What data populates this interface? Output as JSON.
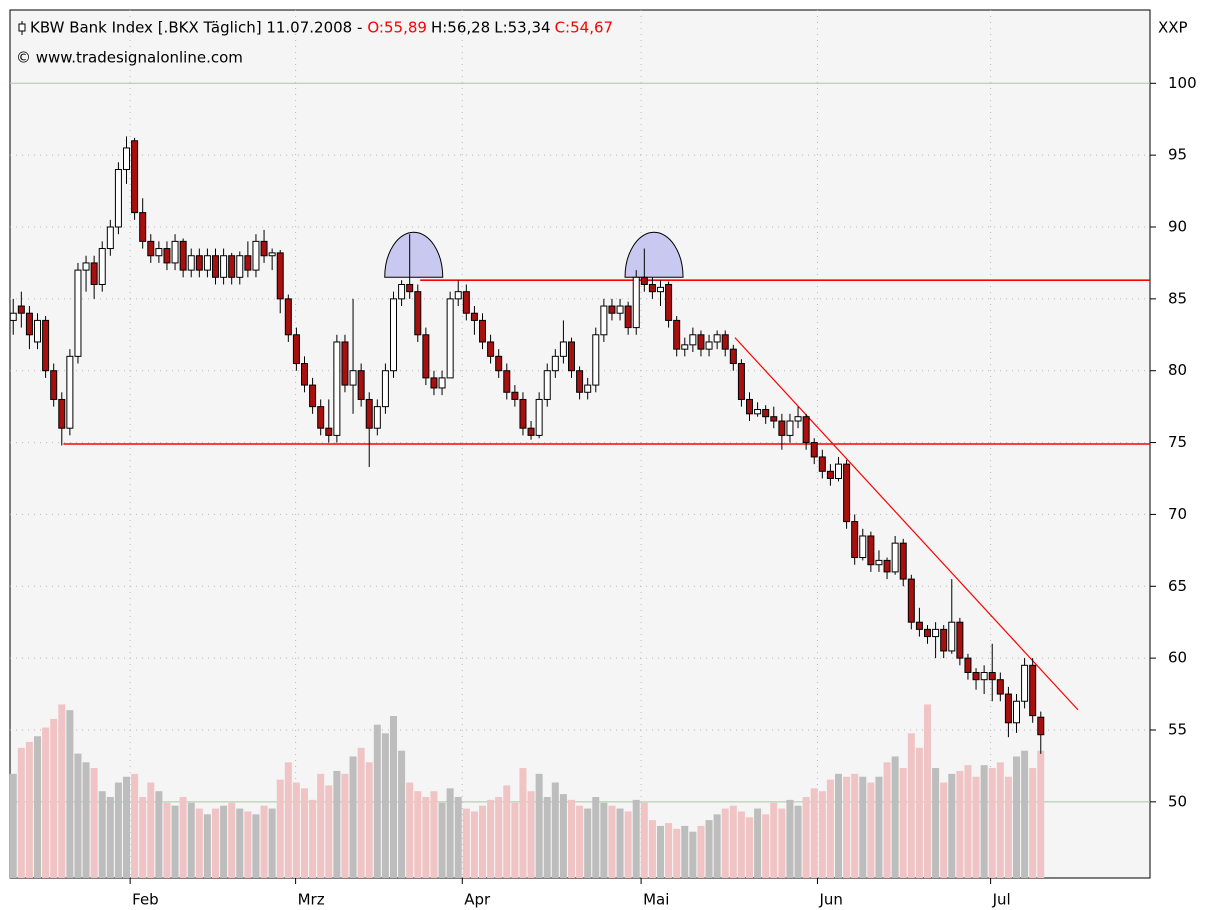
{
  "chart_data": {
    "type": "candlestick",
    "title": "KBW Bank Index [.BKX  Täglich] 11.07.2008 -",
    "ohlc_labels": [
      {
        "label": "O:55,89",
        "color": "#ff0000"
      },
      {
        "label": "H:56,28",
        "color": "#000000"
      },
      {
        "label": "L:53,34",
        "color": "#000000"
      },
      {
        "label": "C:54,67",
        "color": "#ff0000"
      }
    ],
    "subtitle": "© www.tradesignalonline.com",
    "y_axis_label": "XXP",
    "up_color": "#ffffff",
    "down_color": "#a81010",
    "volume_up_color": "#bdbdbd",
    "volume_down_color": "#f0c4c4",
    "grid": true,
    "xlim": [
      -0.4,
      140.5
    ],
    "xticks": [
      {
        "value": 14.45,
        "label": "Feb"
      },
      {
        "value": 34.9,
        "label": "Mrz"
      },
      {
        "value": 55.5,
        "label": "Apr"
      },
      {
        "value": 77.6,
        "label": "Mai"
      },
      {
        "value": 99.4,
        "label": "Jun"
      },
      {
        "value": 120.8,
        "label": "Jul"
      }
    ],
    "ylim": [
      44.7,
      105.1
    ],
    "yticks": [
      50,
      55,
      60,
      65,
      70,
      75,
      80,
      85,
      90,
      95,
      100
    ],
    "y2lim": [
      0,
      300
    ],
    "candles": [
      [
        83.5,
        85,
        82.5,
        84
      ],
      [
        84.5,
        85.5,
        83,
        84
      ],
      [
        84,
        84.5,
        81.5,
        82.5
      ],
      [
        82,
        84,
        81.5,
        83.5
      ],
      [
        83.5,
        83.8,
        79.5,
        80
      ],
      [
        80,
        80.5,
        77.5,
        78
      ],
      [
        78,
        78.5,
        74.8,
        76
      ],
      [
        76,
        81.5,
        75.5,
        81
      ],
      [
        81,
        87.5,
        80.5,
        87
      ],
      [
        87,
        88,
        85.5,
        87.5
      ],
      [
        87.5,
        88,
        85,
        86
      ],
      [
        86,
        89,
        85.5,
        88.5
      ],
      [
        88.5,
        90.5,
        88,
        90
      ],
      [
        90,
        94.5,
        89.5,
        94
      ],
      [
        94,
        96.3,
        93,
        95.5
      ],
      [
        96,
        96.2,
        90.5,
        91
      ],
      [
        91,
        92,
        88.5,
        89
      ],
      [
        89,
        89.5,
        87.5,
        88
      ],
      [
        88,
        89,
        87.5,
        88.5
      ],
      [
        88.5,
        89,
        87,
        87.5
      ],
      [
        87.5,
        89.5,
        87,
        89
      ],
      [
        89,
        89.2,
        86.5,
        87
      ],
      [
        87,
        88.5,
        86.5,
        88
      ],
      [
        88,
        88.5,
        86.5,
        87
      ],
      [
        87,
        88.5,
        86.5,
        88
      ],
      [
        88,
        88.5,
        86,
        86.5
      ],
      [
        86.5,
        88.5,
        86,
        88
      ],
      [
        88,
        88.2,
        86,
        86.5
      ],
      [
        86.5,
        88.3,
        86,
        88
      ],
      [
        88,
        89,
        86.5,
        87
      ],
      [
        87,
        89.5,
        86.5,
        89
      ],
      [
        89,
        89.8,
        87.5,
        88
      ],
      [
        88,
        88.5,
        87,
        88.2
      ],
      [
        88.2,
        88.4,
        84,
        85
      ],
      [
        85,
        85.3,
        82,
        82.5
      ],
      [
        82.5,
        83,
        80,
        80.5
      ],
      [
        80.5,
        81,
        78.5,
        79
      ],
      [
        79,
        79.5,
        77,
        77.5
      ],
      [
        77.5,
        78,
        75.5,
        76
      ],
      [
        76,
        78,
        75,
        75.5
      ],
      [
        75.5,
        82.5,
        75,
        82
      ],
      [
        82,
        82.5,
        78.5,
        79
      ],
      [
        79,
        85,
        77,
        80
      ],
      [
        80,
        80.5,
        77.5,
        78
      ],
      [
        78,
        78.5,
        73.3,
        76
      ],
      [
        76,
        78,
        75.5,
        77.5
      ],
      [
        77.5,
        80.5,
        77,
        80
      ],
      [
        80,
        85.5,
        79.5,
        85
      ],
      [
        85,
        86.3,
        84.5,
        86
      ],
      [
        86,
        89.5,
        85,
        85.5
      ],
      [
        85.5,
        86,
        82,
        82.5
      ],
      [
        82.5,
        83,
        79,
        79.5
      ],
      [
        79.5,
        80,
        78.3,
        78.8
      ],
      [
        78.8,
        80,
        78.3,
        79.5
      ],
      [
        79.5,
        85.5,
        79.5,
        85
      ],
      [
        85,
        86.3,
        84.5,
        85.5
      ],
      [
        85.5,
        86,
        83.5,
        84
      ],
      [
        84,
        84.5,
        82.5,
        83.5
      ],
      [
        83.5,
        84,
        81.5,
        82
      ],
      [
        82,
        82.5,
        80.5,
        81
      ],
      [
        81,
        81.5,
        79.5,
        80
      ],
      [
        80,
        80.5,
        78,
        78.5
      ],
      [
        78.5,
        79,
        77.5,
        78
      ],
      [
        78,
        78.5,
        75.5,
        76
      ],
      [
        76,
        76.5,
        75.2,
        75.5
      ],
      [
        75.5,
        78.5,
        75.3,
        78
      ],
      [
        78,
        80.5,
        77.5,
        80
      ],
      [
        80,
        81.5,
        79.5,
        81
      ],
      [
        81,
        83.5,
        80.5,
        82
      ],
      [
        82,
        82.3,
        79.5,
        80
      ],
      [
        80,
        80.3,
        78,
        78.5
      ],
      [
        78.5,
        79.5,
        78,
        79
      ],
      [
        79,
        83,
        78.5,
        82.5
      ],
      [
        82.5,
        85,
        82,
        84.5
      ],
      [
        84.5,
        85,
        83.5,
        84
      ],
      [
        84,
        85,
        83.5,
        84.5
      ],
      [
        84.5,
        84.8,
        82.5,
        83
      ],
      [
        83,
        87,
        82.5,
        86.5
      ],
      [
        86.5,
        88.5,
        85.5,
        86
      ],
      [
        86,
        86.5,
        85,
        85.5
      ],
      [
        85.5,
        86.3,
        84.5,
        85.8
      ],
      [
        86,
        86.2,
        83,
        83.5
      ],
      [
        83.5,
        83.8,
        81,
        81.5
      ],
      [
        81.5,
        82.3,
        81,
        81.8
      ],
      [
        81.8,
        83,
        81.3,
        82.5
      ],
      [
        82.5,
        82.8,
        81,
        81.5
      ],
      [
        81.5,
        82.5,
        81,
        82
      ],
      [
        82,
        82.8,
        81.5,
        82.5
      ],
      [
        82.5,
        82.8,
        81,
        81.5
      ],
      [
        81.5,
        81.8,
        80,
        80.5
      ],
      [
        80.5,
        80.8,
        77.5,
        78
      ],
      [
        78,
        78.5,
        76.5,
        77
      ],
      [
        77,
        77.8,
        76.8,
        77.3
      ],
      [
        77.3,
        77.6,
        76.3,
        76.8
      ],
      [
        76.8,
        77.5,
        76,
        76.5
      ],
      [
        76.5,
        77,
        74.5,
        75.5
      ],
      [
        75.5,
        77,
        75,
        76.5
      ],
      [
        76.5,
        77.5,
        76,
        76.8
      ],
      [
        76.8,
        77,
        74.5,
        75
      ],
      [
        75,
        75.3,
        73.5,
        74
      ],
      [
        74,
        74.5,
        72.5,
        73
      ],
      [
        73,
        73.5,
        72,
        72.5
      ],
      [
        72.5,
        74,
        72.3,
        73.5
      ],
      [
        73.5,
        73.8,
        69,
        69.5
      ],
      [
        69.5,
        70,
        66.5,
        67
      ],
      [
        67,
        69,
        66.8,
        68.5
      ],
      [
        68.5,
        68.8,
        66,
        66.5
      ],
      [
        66.5,
        67.5,
        66,
        66.8
      ],
      [
        66.8,
        67,
        65.5,
        66
      ],
      [
        66,
        68.5,
        65.8,
        68
      ],
      [
        68,
        68.3,
        65,
        65.5
      ],
      [
        65.5,
        65.8,
        62,
        62.5
      ],
      [
        62.5,
        63.5,
        61.5,
        62
      ],
      [
        62,
        62.3,
        61,
        61.5
      ],
      [
        61.5,
        62.5,
        60,
        62
      ],
      [
        62,
        62.3,
        60,
        60.5
      ],
      [
        60.5,
        65.5,
        60.3,
        62.5
      ],
      [
        62.5,
        62.8,
        59.5,
        60
      ],
      [
        60,
        60.3,
        58.5,
        59
      ],
      [
        59,
        59.3,
        57.8,
        58.5
      ],
      [
        58.5,
        59.5,
        57.5,
        59
      ],
      [
        59,
        61,
        57,
        58.5
      ],
      [
        58.5,
        59,
        57,
        57.5
      ],
      [
        57.5,
        58,
        54.5,
        55.5
      ],
      [
        55.5,
        57.5,
        54.8,
        57
      ],
      [
        57,
        60,
        56.5,
        59.5
      ],
      [
        59.5,
        60,
        55.5,
        56
      ],
      [
        55.89,
        56.28,
        53.34,
        54.67
      ]
    ],
    "volume": [
      36,
      45,
      47,
      49,
      52,
      55,
      60,
      58,
      43,
      40,
      38,
      30,
      28,
      33,
      35,
      36,
      28,
      33,
      30,
      26,
      25,
      28,
      26,
      24,
      22,
      24,
      25,
      26,
      24,
      23,
      22,
      25,
      24,
      34,
      40,
      33,
      31,
      27,
      36,
      32,
      37,
      36,
      42,
      45,
      40,
      53,
      50,
      56,
      44,
      33,
      30,
      28,
      30,
      26,
      31,
      28,
      24,
      23,
      25,
      27,
      28,
      32,
      26,
      38,
      30,
      36,
      28,
      33,
      29,
      27,
      25,
      24,
      28,
      26,
      25,
      24,
      23,
      27,
      26,
      20,
      18,
      19,
      17,
      18,
      16,
      18,
      20,
      22,
      24,
      25,
      23,
      21,
      24,
      22,
      26,
      24,
      27,
      25,
      28,
      31,
      30,
      34,
      36,
      35,
      36,
      35,
      33,
      35,
      40,
      42,
      38,
      50,
      45,
      60,
      38,
      33,
      36,
      37,
      39,
      35,
      39,
      38,
      40,
      35,
      42,
      44,
      38,
      44
    ],
    "hlines": [
      {
        "x": 50.3,
        "y": 86.3
      },
      {
        "x": 6.2,
        "y": 74.9
      }
    ],
    "trendline": {
      "x": [
        89.2,
        131.6
      ],
      "y": [
        82.3,
        56.4
      ]
    },
    "line_color": "#ff0000",
    "highlights": [
      {
        "x": 49.5,
        "y": 86.5
      },
      {
        "x": 79.2,
        "y": 86.5
      }
    ]
  }
}
